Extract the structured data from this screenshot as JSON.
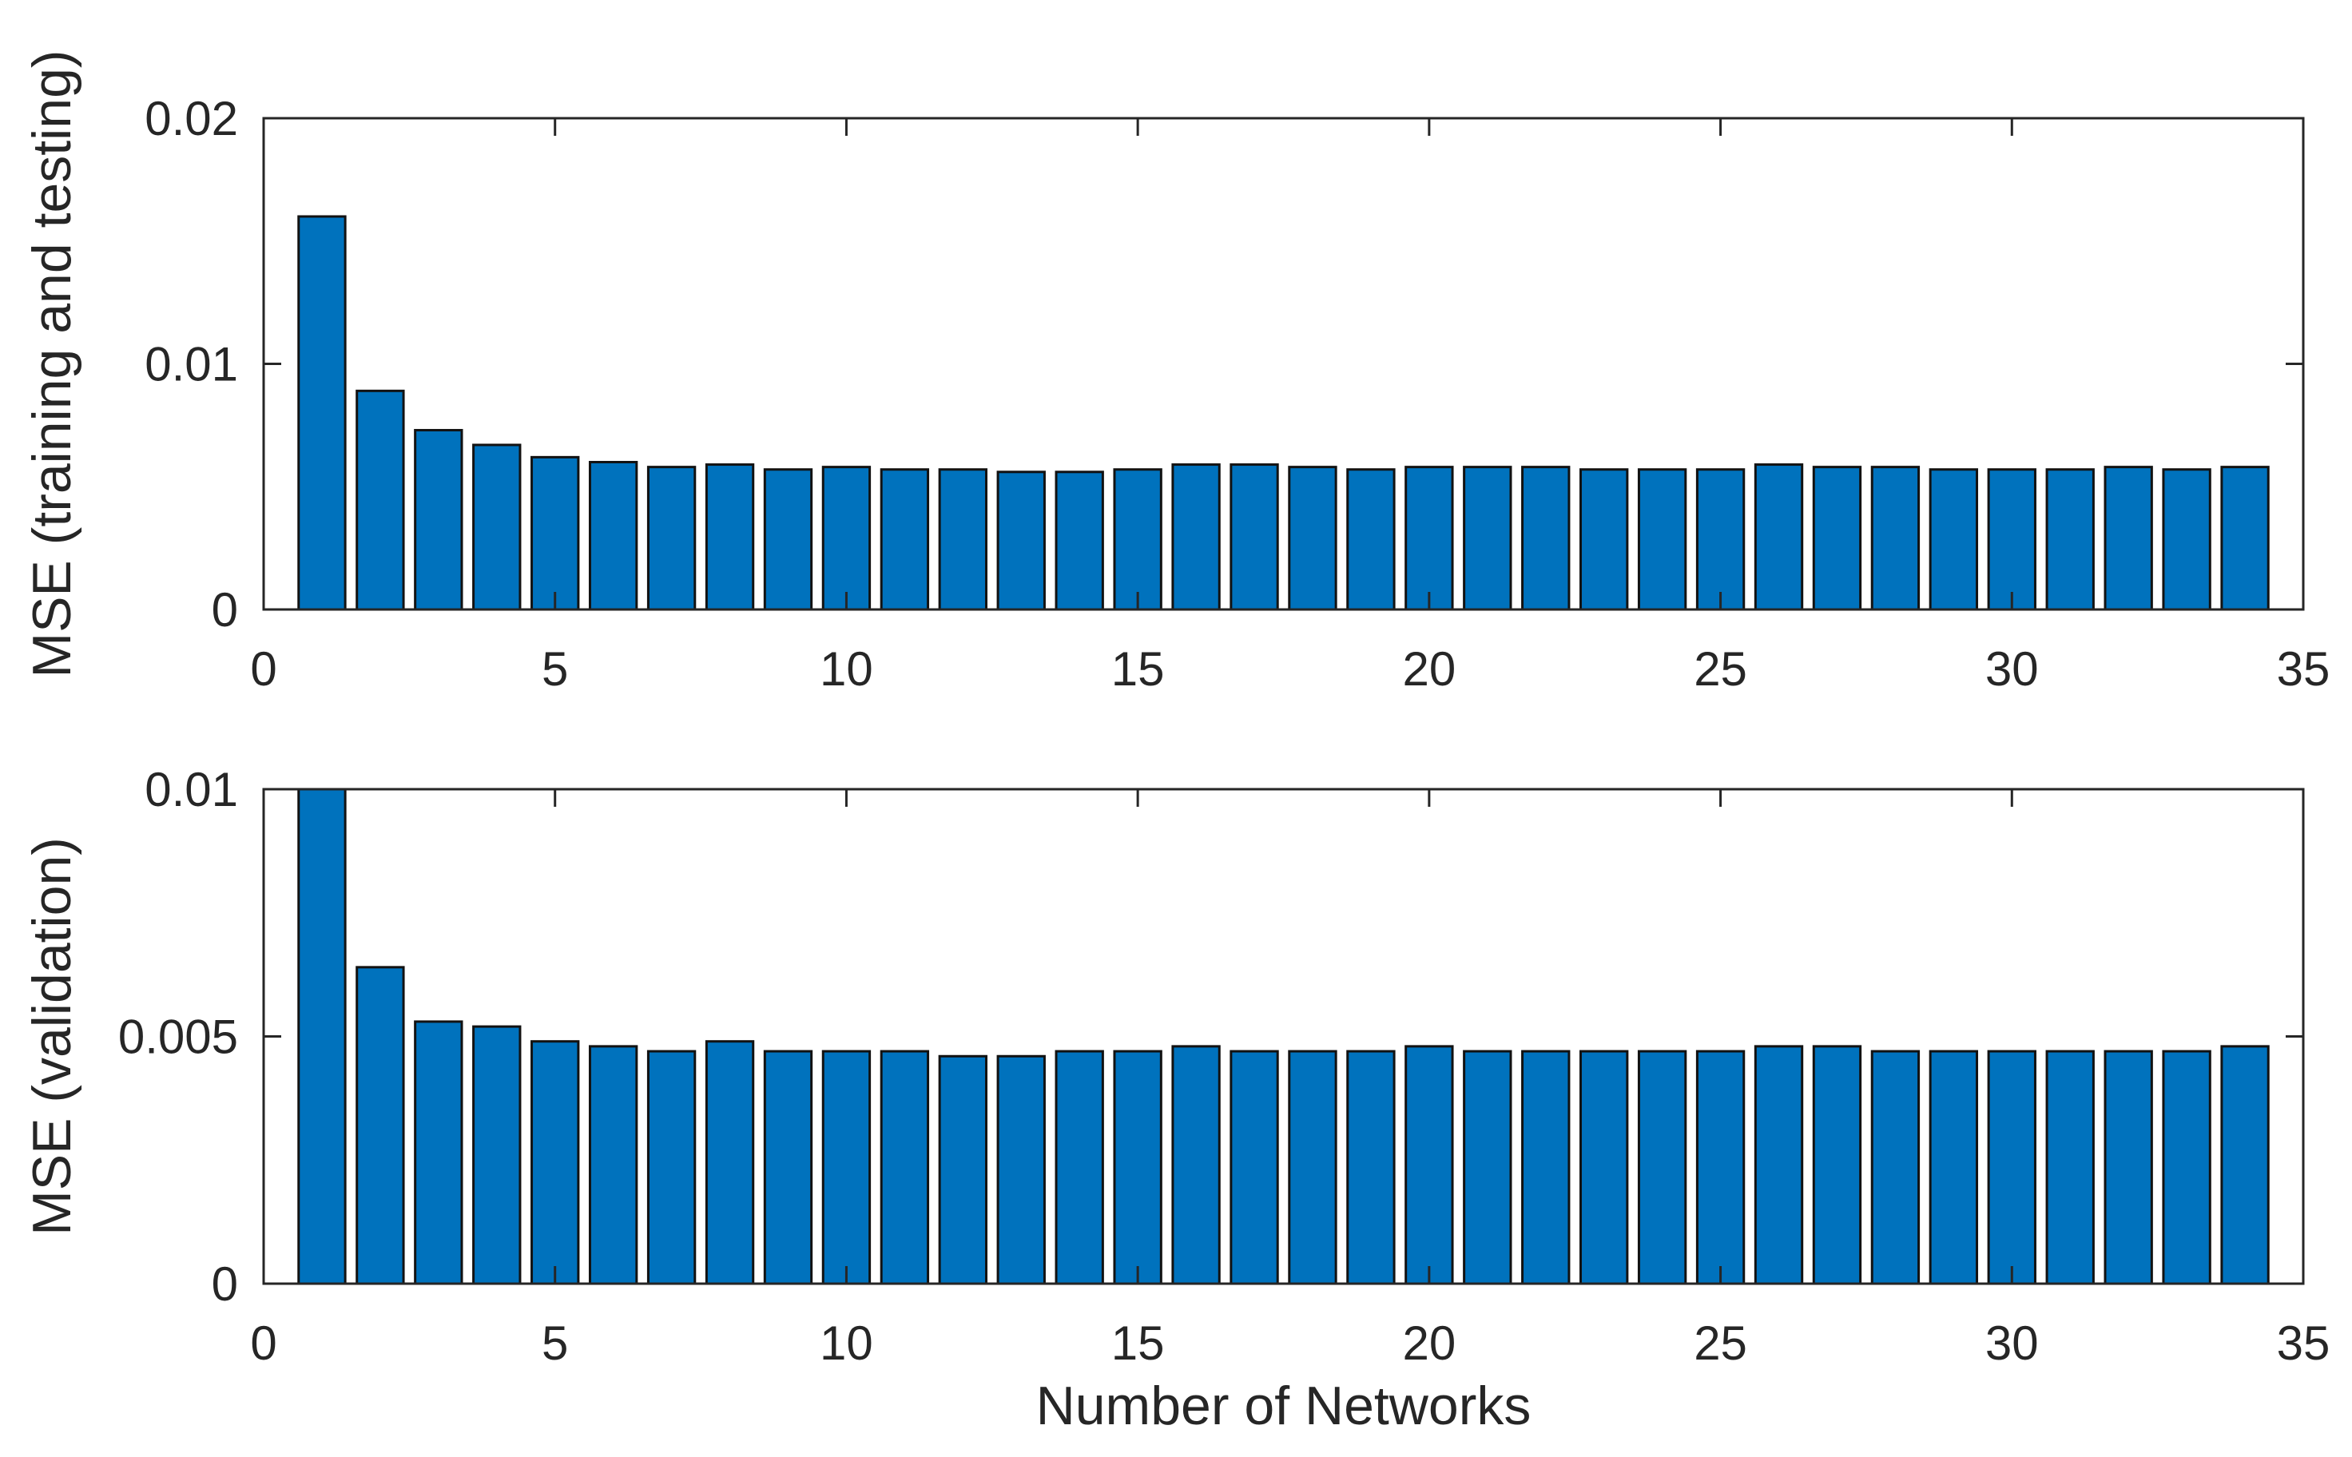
{
  "figure": {
    "background": "#ffffff",
    "bar_fill": "#0072BD",
    "bar_edge": "#121212",
    "axis_color": "#262626",
    "text_color": "#262626"
  },
  "chart_data": [
    {
      "type": "bar",
      "title": "",
      "xlabel": "",
      "ylabel": "MSE (training and testing)",
      "xlim": [
        0,
        35
      ],
      "ylim": [
        0,
        0.02
      ],
      "xticks": [
        0,
        5,
        10,
        15,
        20,
        25,
        30,
        35
      ],
      "xtick_labels": [
        "0",
        "5",
        "10",
        "15",
        "20",
        "25",
        "30",
        "35"
      ],
      "yticks": [
        0,
        0.01,
        0.02
      ],
      "ytick_labels": [
        "0",
        "0.01",
        "0.02"
      ],
      "bar_width": 0.8,
      "grid": false,
      "legend": null,
      "x": [
        1,
        2,
        3,
        4,
        5,
        6,
        7,
        8,
        9,
        10,
        11,
        12,
        13,
        14,
        15,
        16,
        17,
        18,
        19,
        20,
        21,
        22,
        23,
        24,
        25,
        26,
        27,
        28,
        29,
        30,
        31,
        32,
        33,
        34
      ],
      "values": [
        0.016,
        0.0089,
        0.0073,
        0.0067,
        0.0062,
        0.006,
        0.0058,
        0.0059,
        0.0057,
        0.0058,
        0.0057,
        0.0057,
        0.0056,
        0.0056,
        0.0057,
        0.0059,
        0.0059,
        0.0058,
        0.0057,
        0.0058,
        0.0058,
        0.0058,
        0.0057,
        0.0057,
        0.0057,
        0.0059,
        0.0058,
        0.0058,
        0.0057,
        0.0057,
        0.0057,
        0.0058,
        0.0057,
        0.0058
      ]
    },
    {
      "type": "bar",
      "title": "",
      "xlabel": "Number of Networks",
      "ylabel": "MSE (validation)",
      "xlim": [
        0,
        35
      ],
      "ylim": [
        0,
        0.01
      ],
      "xticks": [
        0,
        5,
        10,
        15,
        20,
        25,
        30,
        35
      ],
      "xtick_labels": [
        "0",
        "5",
        "10",
        "15",
        "20",
        "25",
        "30",
        "35"
      ],
      "yticks": [
        0,
        0.005,
        0.01
      ],
      "ytick_labels": [
        "0",
        "0.005",
        "0.01"
      ],
      "bar_width": 0.8,
      "grid": false,
      "legend": null,
      "x": [
        1,
        2,
        3,
        4,
        5,
        6,
        7,
        8,
        9,
        10,
        11,
        12,
        13,
        14,
        15,
        16,
        17,
        18,
        19,
        20,
        21,
        22,
        23,
        24,
        25,
        26,
        27,
        28,
        29,
        30,
        31,
        32,
        33,
        34
      ],
      "values": [
        0.0102,
        0.0064,
        0.0053,
        0.0052,
        0.0049,
        0.0048,
        0.0047,
        0.0049,
        0.0047,
        0.0047,
        0.0047,
        0.0046,
        0.0046,
        0.0047,
        0.0047,
        0.0048,
        0.0047,
        0.0047,
        0.0047,
        0.0048,
        0.0047,
        0.0047,
        0.0047,
        0.0047,
        0.0047,
        0.0048,
        0.0048,
        0.0047,
        0.0047,
        0.0047,
        0.0047,
        0.0047,
        0.0047,
        0.0048
      ]
    }
  ]
}
